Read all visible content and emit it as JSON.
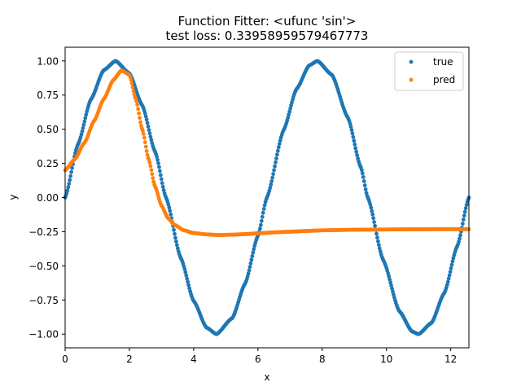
{
  "chart_data": {
    "type": "scatter",
    "title": "Function Fitter: <ufunc 'sin'>",
    "subtitle": "test loss: 0.33958959579467773",
    "xlabel": "x",
    "ylabel": "y",
    "xlim": [
      0,
      12.566
    ],
    "ylim": [
      -1.1,
      1.1
    ],
    "xticks": [
      0,
      2,
      4,
      6,
      8,
      10,
      12
    ],
    "xtick_labels": [
      "0",
      "2",
      "4",
      "6",
      "8",
      "10",
      "12"
    ],
    "yticks": [
      -1.0,
      -0.75,
      -0.5,
      -0.25,
      0.0,
      0.25,
      0.5,
      0.75,
      1.0
    ],
    "ytick_labels": [
      "−1.00",
      "−0.75",
      "−0.50",
      "−0.25",
      "0.00",
      "0.25",
      "0.50",
      "0.75",
      "1.00"
    ],
    "grid": false,
    "legend_position": "top-right",
    "series": [
      {
        "name": "true",
        "color": "#1f77b4",
        "x": [
          0.0,
          0.4,
          0.8,
          1.2,
          1.57,
          2.0,
          2.4,
          2.8,
          3.14,
          3.6,
          4.0,
          4.4,
          4.71,
          5.2,
          5.6,
          6.0,
          6.28,
          6.8,
          7.2,
          7.6,
          7.85,
          8.3,
          8.8,
          9.2,
          9.42,
          9.9,
          10.4,
          10.8,
          11.0,
          11.4,
          11.8,
          12.2,
          12.566
        ],
        "y": [
          0.0,
          0.389,
          0.717,
          0.932,
          1.0,
          0.909,
          0.675,
          0.335,
          0.0,
          -0.443,
          -0.757,
          -0.952,
          -1.0,
          -0.883,
          -0.631,
          -0.279,
          0.0,
          0.494,
          0.794,
          0.968,
          1.0,
          0.899,
          0.585,
          0.223,
          0.0,
          -0.458,
          -0.832,
          -0.981,
          -1.0,
          -0.918,
          -0.699,
          -0.358,
          0.0
        ]
      },
      {
        "name": "pred",
        "color": "#ff7f0e",
        "x": [
          0.0,
          0.3,
          0.6,
          0.9,
          1.2,
          1.5,
          1.75,
          2.0,
          2.2,
          2.4,
          2.6,
          2.8,
          3.0,
          3.2,
          3.4,
          3.7,
          4.0,
          4.4,
          4.8,
          5.2,
          5.6,
          6.0,
          6.5,
          7.0,
          7.5,
          8.0,
          8.5,
          9.0,
          9.5,
          10.0,
          10.5,
          11.0,
          11.5,
          12.0,
          12.566
        ],
        "y": [
          0.2,
          0.28,
          0.4,
          0.56,
          0.72,
          0.86,
          0.93,
          0.9,
          0.72,
          0.5,
          0.28,
          0.08,
          -0.06,
          -0.15,
          -0.2,
          -0.24,
          -0.26,
          -0.27,
          -0.275,
          -0.272,
          -0.268,
          -0.262,
          -0.255,
          -0.25,
          -0.245,
          -0.24,
          -0.238,
          -0.236,
          -0.235,
          -0.234,
          -0.233,
          -0.233,
          -0.232,
          -0.232,
          -0.232
        ]
      }
    ]
  }
}
